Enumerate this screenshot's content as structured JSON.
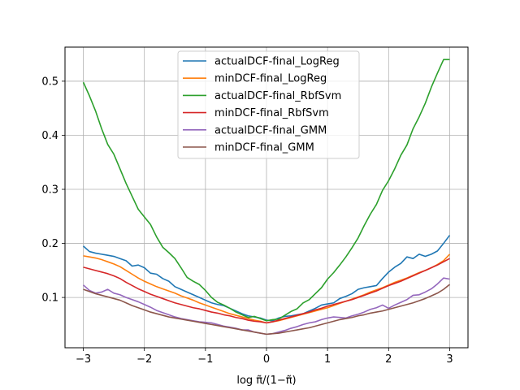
{
  "chart_data": {
    "type": "line",
    "title": "",
    "xlabel": "log π̃/(1−π̃)",
    "ylabel": "",
    "xlim": [
      -3.3,
      3.3
    ],
    "ylim": [
      0.007,
      0.563
    ],
    "xticks": [
      -3,
      -2,
      -1,
      0,
      1,
      2,
      3
    ],
    "yticks": [
      0.1,
      0.2,
      0.3,
      0.4,
      0.5
    ],
    "grid": true,
    "legend_position": "top-center",
    "x": [
      -3.0,
      -2.9,
      -2.8,
      -2.7,
      -2.6,
      -2.5,
      -2.4,
      -2.3,
      -2.2,
      -2.1,
      -2.0,
      -1.9,
      -1.8,
      -1.7,
      -1.6,
      -1.5,
      -1.4,
      -1.3,
      -1.2,
      -1.1,
      -1.0,
      -0.9,
      -0.8,
      -0.7,
      -0.6,
      -0.5,
      -0.4,
      -0.3,
      -0.2,
      -0.1,
      0.0,
      0.1,
      0.2,
      0.3,
      0.4,
      0.5,
      0.6,
      0.7,
      0.8,
      0.9,
      1.0,
      1.1,
      1.2,
      1.3,
      1.4,
      1.5,
      1.6,
      1.7,
      1.8,
      1.9,
      2.0,
      2.1,
      2.2,
      2.3,
      2.4,
      2.5,
      2.6,
      2.7,
      2.8,
      2.9,
      3.0
    ],
    "series": [
      {
        "name": "actualDCF-final_LogReg",
        "color": "#1f77b4",
        "values": [
          0.195,
          0.185,
          0.182,
          0.18,
          0.178,
          0.176,
          0.172,
          0.168,
          0.158,
          0.16,
          0.155,
          0.145,
          0.143,
          0.135,
          0.13,
          0.12,
          0.115,
          0.11,
          0.105,
          0.1,
          0.095,
          0.09,
          0.087,
          0.085,
          0.08,
          0.075,
          0.07,
          0.066,
          0.064,
          0.062,
          0.058,
          0.057,
          0.062,
          0.065,
          0.066,
          0.068,
          0.07,
          0.075,
          0.08,
          0.086,
          0.088,
          0.09,
          0.098,
          0.102,
          0.107,
          0.115,
          0.118,
          0.12,
          0.122,
          0.135,
          0.147,
          0.156,
          0.163,
          0.175,
          0.172,
          0.18,
          0.176,
          0.18,
          0.186,
          0.2,
          0.215
        ]
      },
      {
        "name": "minDCF-final_LogReg",
        "color": "#ff7f0e",
        "values": [
          0.177,
          0.175,
          0.173,
          0.17,
          0.166,
          0.162,
          0.157,
          0.15,
          0.143,
          0.136,
          0.13,
          0.125,
          0.12,
          0.116,
          0.112,
          0.108,
          0.103,
          0.099,
          0.095,
          0.09,
          0.086,
          0.082,
          0.078,
          0.074,
          0.07,
          0.067,
          0.064,
          0.061,
          0.058,
          0.056,
          0.053,
          0.055,
          0.057,
          0.06,
          0.063,
          0.066,
          0.069,
          0.072,
          0.075,
          0.078,
          0.081,
          0.085,
          0.089,
          0.093,
          0.097,
          0.101,
          0.105,
          0.11,
          0.114,
          0.118,
          0.123,
          0.128,
          0.132,
          0.136,
          0.141,
          0.146,
          0.15,
          0.155,
          0.161,
          0.168,
          0.18
        ]
      },
      {
        "name": "actualDCF-final_RbfSvm",
        "color": "#2ca02c",
        "values": [
          0.498,
          0.473,
          0.445,
          0.412,
          0.383,
          0.365,
          0.338,
          0.311,
          0.287,
          0.263,
          0.249,
          0.235,
          0.212,
          0.193,
          0.183,
          0.172,
          0.155,
          0.137,
          0.13,
          0.124,
          0.113,
          0.1,
          0.091,
          0.086,
          0.08,
          0.073,
          0.068,
          0.063,
          0.065,
          0.061,
          0.057,
          0.059,
          0.06,
          0.067,
          0.074,
          0.079,
          0.09,
          0.096,
          0.107,
          0.118,
          0.134,
          0.146,
          0.16,
          0.175,
          0.192,
          0.21,
          0.233,
          0.254,
          0.272,
          0.298,
          0.316,
          0.338,
          0.363,
          0.382,
          0.412,
          0.434,
          0.459,
          0.489,
          0.515,
          0.54,
          0.54
        ]
      },
      {
        "name": "minDCF-final_RbfSvm",
        "color": "#d62728",
        "values": [
          0.156,
          0.153,
          0.15,
          0.147,
          0.144,
          0.14,
          0.135,
          0.128,
          0.122,
          0.116,
          0.111,
          0.106,
          0.102,
          0.098,
          0.094,
          0.09,
          0.087,
          0.084,
          0.081,
          0.079,
          0.076,
          0.073,
          0.071,
          0.068,
          0.066,
          0.063,
          0.061,
          0.058,
          0.056,
          0.055,
          0.053,
          0.055,
          0.058,
          0.061,
          0.064,
          0.067,
          0.07,
          0.073,
          0.077,
          0.08,
          0.084,
          0.087,
          0.09,
          0.093,
          0.096,
          0.1,
          0.104,
          0.108,
          0.112,
          0.117,
          0.122,
          0.126,
          0.13,
          0.135,
          0.14,
          0.145,
          0.15,
          0.155,
          0.16,
          0.166,
          0.172
        ]
      },
      {
        "name": "actualDCF-final_GMM",
        "color": "#9467bd",
        "values": [
          0.123,
          0.113,
          0.108,
          0.11,
          0.115,
          0.108,
          0.105,
          0.1,
          0.096,
          0.092,
          0.087,
          0.082,
          0.076,
          0.072,
          0.068,
          0.064,
          0.061,
          0.059,
          0.057,
          0.055,
          0.054,
          0.053,
          0.05,
          0.047,
          0.045,
          0.043,
          0.04,
          0.04,
          0.036,
          0.034,
          0.032,
          0.033,
          0.036,
          0.039,
          0.043,
          0.046,
          0.05,
          0.053,
          0.055,
          0.059,
          0.062,
          0.064,
          0.063,
          0.062,
          0.066,
          0.069,
          0.073,
          0.078,
          0.081,
          0.086,
          0.08,
          0.086,
          0.091,
          0.096,
          0.104,
          0.105,
          0.11,
          0.116,
          0.125,
          0.136,
          0.134
        ]
      },
      {
        "name": "minDCF-final_GMM",
        "color": "#8c564b",
        "values": [
          0.115,
          0.111,
          0.107,
          0.104,
          0.101,
          0.098,
          0.095,
          0.09,
          0.085,
          0.081,
          0.077,
          0.073,
          0.07,
          0.067,
          0.064,
          0.062,
          0.06,
          0.058,
          0.056,
          0.054,
          0.052,
          0.05,
          0.048,
          0.046,
          0.044,
          0.042,
          0.04,
          0.038,
          0.036,
          0.034,
          0.032,
          0.033,
          0.034,
          0.036,
          0.038,
          0.04,
          0.042,
          0.044,
          0.047,
          0.05,
          0.053,
          0.056,
          0.059,
          0.061,
          0.063,
          0.066,
          0.068,
          0.071,
          0.073,
          0.075,
          0.078,
          0.081,
          0.084,
          0.087,
          0.09,
          0.094,
          0.098,
          0.103,
          0.108,
          0.115,
          0.124
        ]
      }
    ]
  }
}
